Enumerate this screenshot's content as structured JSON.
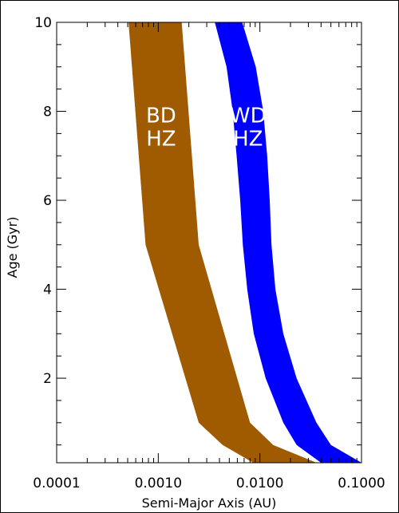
{
  "chart_data": {
    "type": "area",
    "title": "",
    "xlabel": "Semi-Major Axis (AU)",
    "ylabel": "Age (Gyr)",
    "xscale": "log",
    "xlim": [
      0.0001,
      0.1
    ],
    "ylim": [
      0.1,
      10
    ],
    "x_tick_labels": [
      "0.0001",
      "0.0010",
      "0.0100",
      "0.1000"
    ],
    "y_tick_labels": [
      "2",
      "4",
      "6",
      "8",
      "10"
    ],
    "series": [
      {
        "name": "BD HZ",
        "color": "#a05a00",
        "label_lines": [
          "BD",
          "HZ"
        ],
        "inner": [
          {
            "y": 10,
            "x": 0.00051
          },
          {
            "y": 5,
            "x": 0.00075
          },
          {
            "y": 1,
            "x": 0.0025
          },
          {
            "y": 0.5,
            "x": 0.0043
          },
          {
            "y": 0.1,
            "x": 0.0086
          }
        ],
        "outer": [
          {
            "y": 10,
            "x": 0.0017
          },
          {
            "y": 5,
            "x": 0.0025
          },
          {
            "y": 1,
            "x": 0.008
          },
          {
            "y": 0.5,
            "x": 0.0135
          },
          {
            "y": 0.1,
            "x": 0.036
          }
        ]
      },
      {
        "name": "WD HZ",
        "color": "#0000ff",
        "label_lines": [
          "WD",
          "HZ"
        ],
        "inner": [
          {
            "y": 10,
            "x": 0.0036
          },
          {
            "y": 9,
            "x": 0.0047
          },
          {
            "y": 8,
            "x": 0.0054
          },
          {
            "y": 7,
            "x": 0.0059
          },
          {
            "y": 6,
            "x": 0.0064
          },
          {
            "y": 5,
            "x": 0.0068
          },
          {
            "y": 4,
            "x": 0.0075
          },
          {
            "y": 3,
            "x": 0.0087
          },
          {
            "y": 2,
            "x": 0.0114
          },
          {
            "y": 1,
            "x": 0.017
          },
          {
            "y": 0.5,
            "x": 0.023
          },
          {
            "y": 0.1,
            "x": 0.04
          }
        ],
        "outer": [
          {
            "y": 10,
            "x": 0.0067
          },
          {
            "y": 9,
            "x": 0.0091
          },
          {
            "y": 8,
            "x": 0.0108
          },
          {
            "y": 7,
            "x": 0.0118
          },
          {
            "y": 6,
            "x": 0.0125
          },
          {
            "y": 5,
            "x": 0.013
          },
          {
            "y": 4,
            "x": 0.0142
          },
          {
            "y": 3,
            "x": 0.017
          },
          {
            "y": 2,
            "x": 0.023
          },
          {
            "y": 1,
            "x": 0.036
          },
          {
            "y": 0.5,
            "x": 0.05
          },
          {
            "y": 0.1,
            "x": 0.1
          }
        ]
      }
    ]
  }
}
